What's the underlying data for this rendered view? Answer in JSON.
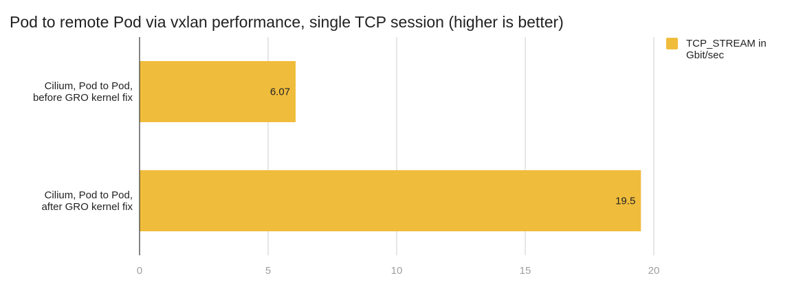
{
  "chart_data": {
    "type": "bar",
    "orientation": "horizontal",
    "title": "Pod to remote Pod via vxlan performance, single TCP session (higher is better)",
    "categories": [
      [
        "Cilium, Pod to Pod,",
        "before GRO kernel fix"
      ],
      [
        "Cilium, Pod to Pod,",
        "after GRO kernel fix"
      ]
    ],
    "series": [
      {
        "name": [
          "TCP_STREAM in",
          "Gbit/sec"
        ],
        "values": [
          6.07,
          19.5
        ],
        "value_labels": [
          "6.07",
          "19.5"
        ],
        "color": "#F0BC3C"
      }
    ],
    "xlim": [
      0,
      20
    ],
    "ticks": [
      0,
      5,
      10,
      15,
      20
    ],
    "tick_labels": [
      "0",
      "5",
      "10",
      "15",
      "20"
    ],
    "grid": true,
    "legend": "top-right"
  }
}
